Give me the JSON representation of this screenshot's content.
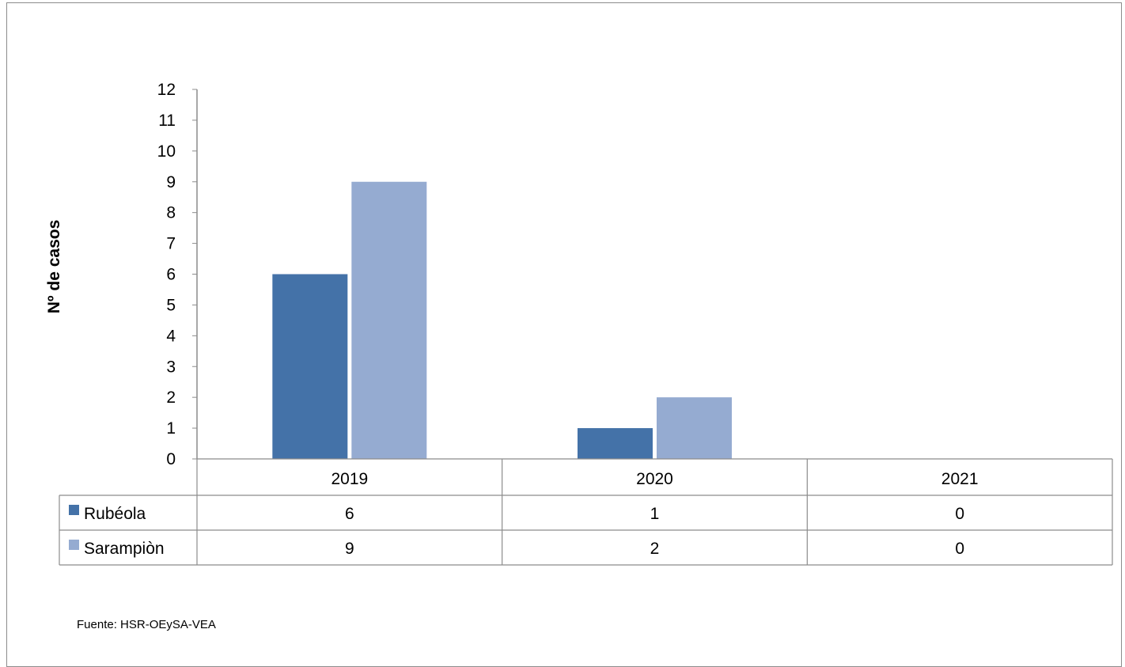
{
  "chart_data": {
    "type": "bar",
    "categories": [
      "2019",
      "2020",
      "2021"
    ],
    "series": [
      {
        "name": "Rubéola",
        "values": [
          6,
          1,
          0
        ],
        "color": "#4472a8"
      },
      {
        "name": "Sarampiòn",
        "values": [
          9,
          2,
          0
        ],
        "color": "#95abd1"
      }
    ],
    "ylabel": "Nº  de casos",
    "xlabel": "",
    "ylim": [
      0,
      12
    ],
    "yticks": [
      "0",
      "1",
      "2",
      "3",
      "4",
      "5",
      "6",
      "7",
      "8",
      "9",
      "10",
      "11",
      "12"
    ],
    "grid": false,
    "legend": "data-table"
  },
  "source_note": "Fuente: HSR-OEySA-VEA"
}
